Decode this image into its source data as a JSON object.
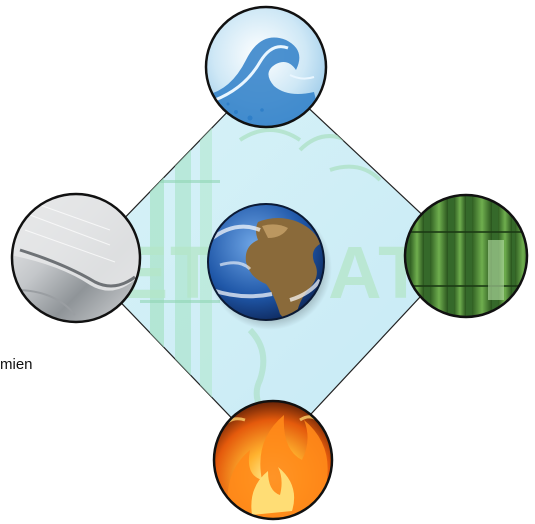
{
  "left_label": "mien",
  "watermark_text": "ETBDAT",
  "colors": {
    "diamond_fill": "#cfeef4",
    "bamboo_pale": "#9fe0c4",
    "water_blue": "#2f7fc8",
    "metal_gray": "#b9bcc0",
    "bamboo_green": "#3f7f2e",
    "fire_orange": "#f07a12",
    "earth_ocean": "#1f57a8",
    "earth_land": "#8a6a3a"
  },
  "nodes": [
    {
      "name": "water",
      "icon": "water-wave-icon"
    },
    {
      "name": "metal",
      "icon": "metal-surface-icon"
    },
    {
      "name": "earth",
      "icon": "earth-globe-icon"
    },
    {
      "name": "wood",
      "icon": "bamboo-wood-icon"
    },
    {
      "name": "fire",
      "icon": "fire-flame-icon"
    }
  ]
}
